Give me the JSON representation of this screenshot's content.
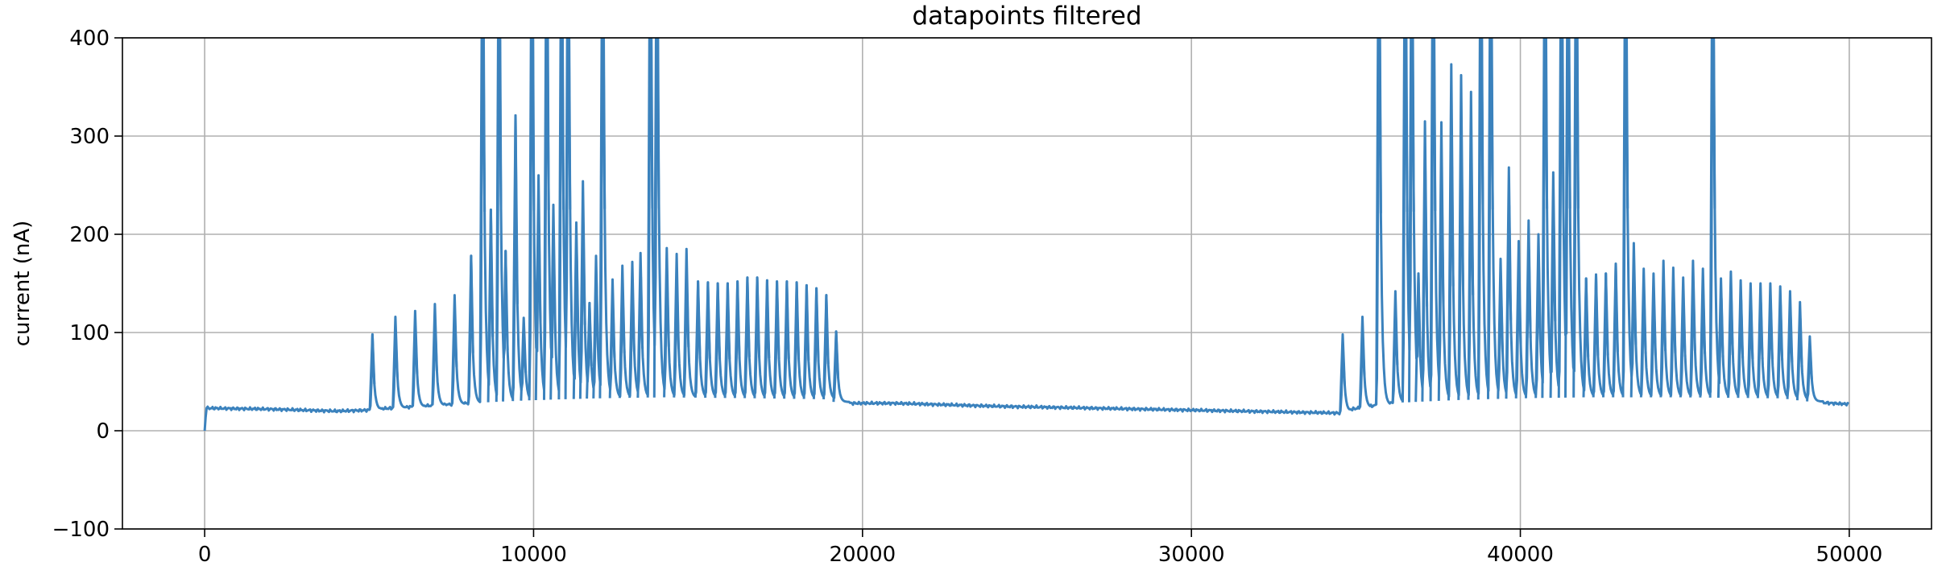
{
  "chart_data": {
    "type": "line",
    "title": "datapoints filtered",
    "xlabel": "",
    "ylabel": "current (nA)",
    "xlim": [
      -2500,
      52500
    ],
    "ylim": [
      -100,
      400
    ],
    "xticks": [
      0,
      10000,
      20000,
      30000,
      40000,
      50000
    ],
    "xtick_labels": [
      "0",
      "10000",
      "20000",
      "30000",
      "40000",
      "50000"
    ],
    "yticks": [
      -100,
      0,
      100,
      200,
      300,
      400
    ],
    "ytick_labels": [
      "−100",
      "0",
      "100",
      "200",
      "300",
      "400"
    ],
    "grid": true,
    "color": "#3b82bd",
    "series": [
      {
        "name": "",
        "baseline": [
          [
            0,
            0
          ],
          [
            50,
            23
          ],
          [
            2000,
            22
          ],
          [
            4000,
            20
          ],
          [
            5000,
            21
          ],
          [
            5200,
            22
          ],
          [
            8000,
            28
          ],
          [
            10000,
            31
          ],
          [
            12000,
            33
          ],
          [
            14000,
            34
          ],
          [
            17000,
            33
          ],
          [
            19000,
            32
          ],
          [
            19300,
            28
          ],
          [
            21000,
            28
          ],
          [
            24000,
            25
          ],
          [
            27000,
            23
          ],
          [
            30000,
            21
          ],
          [
            33000,
            19
          ],
          [
            34500,
            18
          ],
          [
            34700,
            21
          ],
          [
            36000,
            28
          ],
          [
            38000,
            31
          ],
          [
            40000,
            33
          ],
          [
            42000,
            34
          ],
          [
            45000,
            34
          ],
          [
            48000,
            33
          ],
          [
            49000,
            29
          ],
          [
            50000,
            27
          ]
        ],
        "spikes": [
          [
            5100,
            98
          ],
          [
            5800,
            116
          ],
          [
            6400,
            122
          ],
          [
            7000,
            129
          ],
          [
            7600,
            138
          ],
          [
            8100,
            178
          ],
          [
            8450,
            600
          ],
          [
            8700,
            225
          ],
          [
            8950,
            600
          ],
          [
            9150,
            183
          ],
          [
            9450,
            321
          ],
          [
            9700,
            115
          ],
          [
            9950,
            600
          ],
          [
            10150,
            260
          ],
          [
            10400,
            600
          ],
          [
            10600,
            230
          ],
          [
            10850,
            600
          ],
          [
            11050,
            600
          ],
          [
            11300,
            212
          ],
          [
            11500,
            254
          ],
          [
            11700,
            130
          ],
          [
            11900,
            178
          ],
          [
            12100,
            600
          ],
          [
            12400,
            154
          ],
          [
            12700,
            168
          ],
          [
            13000,
            172
          ],
          [
            13250,
            181
          ],
          [
            13550,
            600
          ],
          [
            13750,
            600
          ],
          [
            14050,
            186
          ],
          [
            14350,
            180
          ],
          [
            14650,
            185
          ],
          [
            15000,
            152
          ],
          [
            15300,
            151
          ],
          [
            15600,
            150
          ],
          [
            15900,
            150
          ],
          [
            16200,
            152
          ],
          [
            16500,
            156
          ],
          [
            16800,
            156
          ],
          [
            17100,
            153
          ],
          [
            17400,
            152
          ],
          [
            17700,
            152
          ],
          [
            18000,
            151
          ],
          [
            18300,
            148
          ],
          [
            18600,
            145
          ],
          [
            18900,
            138
          ],
          [
            19200,
            101
          ],
          [
            34600,
            98
          ],
          [
            35200,
            116
          ],
          [
            35700,
            600
          ],
          [
            36200,
            142
          ],
          [
            36500,
            600
          ],
          [
            36700,
            600
          ],
          [
            36900,
            160
          ],
          [
            37100,
            315
          ],
          [
            37350,
            600
          ],
          [
            37600,
            314
          ],
          [
            37900,
            373
          ],
          [
            38200,
            362
          ],
          [
            38500,
            345
          ],
          [
            38800,
            600
          ],
          [
            39100,
            600
          ],
          [
            39400,
            175
          ],
          [
            39650,
            268
          ],
          [
            39950,
            193
          ],
          [
            40250,
            214
          ],
          [
            40550,
            200
          ],
          [
            40750,
            600
          ],
          [
            41000,
            263
          ],
          [
            41250,
            600
          ],
          [
            41450,
            600
          ],
          [
            41700,
            600
          ],
          [
            42000,
            155
          ],
          [
            42300,
            159
          ],
          [
            42600,
            160
          ],
          [
            42900,
            170
          ],
          [
            43200,
            600
          ],
          [
            43450,
            191
          ],
          [
            43750,
            165
          ],
          [
            44050,
            160
          ],
          [
            44350,
            173
          ],
          [
            44650,
            166
          ],
          [
            44950,
            156
          ],
          [
            45250,
            173
          ],
          [
            45550,
            165
          ],
          [
            45850,
            600
          ],
          [
            46100,
            155
          ],
          [
            46400,
            162
          ],
          [
            46700,
            153
          ],
          [
            47000,
            150
          ],
          [
            47300,
            150
          ],
          [
            47600,
            150
          ],
          [
            47900,
            147
          ],
          [
            48200,
            142
          ],
          [
            48500,
            131
          ],
          [
            48800,
            96
          ]
        ]
      }
    ]
  }
}
